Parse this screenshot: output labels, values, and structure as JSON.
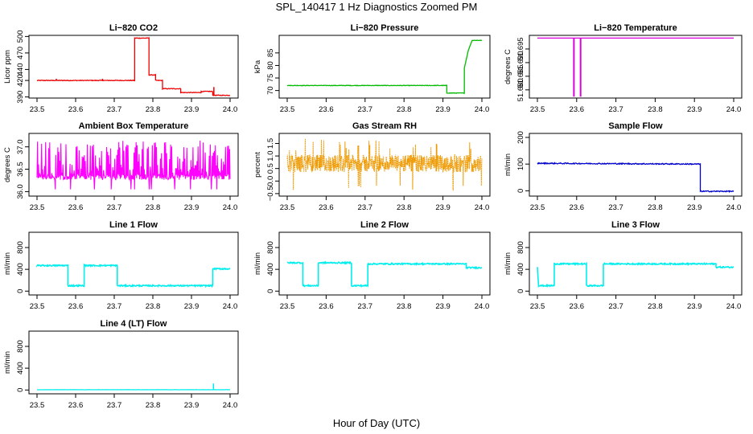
{
  "figure": {
    "title": "SPL_140417  1 Hz Diagnostics Zoomed PM",
    "xlabel": "Hour of Day (UTC)"
  },
  "chart_data": [
    {
      "type": "line",
      "title": "Li−820 CO2",
      "ylabel": "Licor ppm",
      "color": "#ee0000",
      "xlim": [
        23.5,
        24.0
      ],
      "ylim": [
        388,
        502
      ],
      "xticks": [
        "23.5",
        "23.6",
        "23.7",
        "23.8",
        "23.9",
        "24.0"
      ],
      "yticks": [
        {
          "v": 390,
          "label": "390"
        },
        {
          "v": 420,
          "label": "420"
        },
        {
          "v": 440,
          "label": "440"
        },
        {
          "v": 470,
          "label": "470"
        },
        {
          "v": 500,
          "label": "500"
        }
      ],
      "steps": [
        [
          23.5,
          420
        ],
        [
          23.753,
          420
        ],
        [
          23.753,
          497
        ],
        [
          23.79,
          497
        ],
        [
          23.79,
          430
        ],
        [
          23.807,
          430
        ],
        [
          23.807,
          420
        ],
        [
          23.825,
          420
        ],
        [
          23.825,
          405
        ],
        [
          23.872,
          405
        ],
        [
          23.872,
          398
        ],
        [
          23.925,
          398
        ],
        [
          23.925,
          400
        ],
        [
          23.955,
          400
        ],
        [
          23.955,
          393
        ],
        [
          24.0,
          393
        ]
      ],
      "noise": 0.6,
      "spikes": [
        [
          23.55,
          423
        ],
        [
          23.67,
          423
        ],
        [
          23.958,
          408
        ]
      ]
    },
    {
      "type": "line",
      "title": "Li−820 Pressure",
      "ylabel": "kPa",
      "color": "#00bb00",
      "xlim": [
        23.5,
        24.0
      ],
      "ylim": [
        67,
        92
      ],
      "xticks": [
        "23.5",
        "23.6",
        "23.7",
        "23.8",
        "23.9",
        "24.0"
      ],
      "yticks": [
        {
          "v": 70,
          "label": "70"
        },
        {
          "v": 75,
          "label": "75"
        },
        {
          "v": 80,
          "label": "80"
        },
        {
          "v": 85,
          "label": "85"
        }
      ],
      "steps": [
        [
          23.5,
          72
        ],
        [
          23.91,
          72
        ],
        [
          23.91,
          69
        ],
        [
          23.955,
          69
        ],
        [
          23.955,
          79
        ],
        [
          23.965,
          86
        ],
        [
          23.975,
          90
        ],
        [
          24.0,
          90
        ]
      ],
      "noise": 0.1,
      "spikes": []
    },
    {
      "type": "line",
      "title": "Li−820 Temperature",
      "ylabel": "degrees C",
      "color": "#dd00dd",
      "xlim": [
        23.5,
        24.0
      ],
      "ylim": [
        51.677,
        51.7
      ],
      "xticks": [
        "23.5",
        "23.6",
        "23.7",
        "23.8",
        "23.9",
        "24.0"
      ],
      "yticks": [
        {
          "v": 51.68,
          "label": "51.680"
        },
        {
          "v": 51.685,
          "label": "51.685"
        },
        {
          "v": 51.69,
          "label": "51.690"
        },
        {
          "v": 51.695,
          "label": "51.695"
        }
      ],
      "steps": [
        [
          23.5,
          51.699
        ],
        [
          24.0,
          51.699
        ]
      ],
      "noise": 0.0,
      "dips": [
        [
          23.593,
          51.6775
        ],
        [
          23.61,
          51.6775
        ]
      ]
    },
    {
      "type": "line",
      "title": "Ambient Box Temperature",
      "ylabel": "degrees C",
      "color": "#ff00ff",
      "xlim": [
        23.5,
        24.0
      ],
      "ylim": [
        35.9,
        37.3
      ],
      "xticks": [
        "23.5",
        "23.6",
        "23.7",
        "23.8",
        "23.9",
        "24.0"
      ],
      "yticks": [
        {
          "v": 36.0,
          "label": "36.0"
        },
        {
          "v": 36.5,
          "label": "36.5"
        },
        {
          "v": 37.0,
          "label": "37.0"
        }
      ],
      "band": [
        36.25,
        37.15
      ],
      "base": 36.3,
      "dense": true
    },
    {
      "type": "scatter",
      "title": "Gas Stream RH",
      "ylabel": "percent",
      "color": "#ee9900",
      "xlim": [
        23.5,
        24.0
      ],
      "ylim": [
        -0.6,
        1.9
      ],
      "xticks": [
        "23.5",
        "23.6",
        "23.7",
        "23.8",
        "23.9",
        "24.0"
      ],
      "yticks": [
        {
          "v": -0.5,
          "label": "−0.5"
        },
        {
          "v": 0.0,
          "label": "0.0"
        },
        {
          "v": 0.5,
          "label": "0.5"
        },
        {
          "v": 1.0,
          "label": "1.0"
        },
        {
          "v": 1.5,
          "label": "1.5"
        }
      ],
      "band": [
        0.35,
        1.05
      ],
      "spikeHigh": 1.8,
      "spikeLow": -0.45
    },
    {
      "type": "line",
      "title": "Sample Flow",
      "ylabel": "ml/min",
      "color": "#0000cc",
      "xlim": [
        23.5,
        24.0
      ],
      "ylim": [
        -20,
        215
      ],
      "xticks": [
        "23.5",
        "23.6",
        "23.7",
        "23.8",
        "23.9",
        "24.0"
      ],
      "yticks": [
        {
          "v": 0,
          "label": "0"
        },
        {
          "v": 100,
          "label": "100"
        },
        {
          "v": 200,
          "label": "200"
        }
      ],
      "steps": [
        [
          23.5,
          103
        ],
        [
          23.915,
          100
        ],
        [
          23.915,
          -2
        ],
        [
          24.0,
          -2
        ]
      ],
      "noise": 2.0,
      "spikes": []
    },
    {
      "type": "line",
      "title": "Line 1 Flow",
      "ylabel": "ml/min",
      "color": "#00eeee",
      "xlim": [
        23.5,
        24.0
      ],
      "ylim": [
        -70,
        1080
      ],
      "xticks": [
        "23.5",
        "23.6",
        "23.7",
        "23.8",
        "23.9",
        "24.0"
      ],
      "yticks": [
        {
          "v": 0,
          "label": "0"
        },
        {
          "v": 400,
          "label": "400"
        },
        {
          "v": 800,
          "label": "800"
        }
      ],
      "steps": [
        [
          23.5,
          100
        ],
        [
          23.5,
          470
        ],
        [
          23.58,
          470
        ],
        [
          23.58,
          100
        ],
        [
          23.622,
          100
        ],
        [
          23.622,
          470
        ],
        [
          23.708,
          470
        ],
        [
          23.708,
          100
        ],
        [
          23.955,
          100
        ],
        [
          23.955,
          410
        ],
        [
          24.0,
          410
        ]
      ],
      "noise": 12,
      "spikes": []
    },
    {
      "type": "line",
      "title": "Line 2 Flow",
      "ylabel": "ml/min",
      "color": "#00eeee",
      "xlim": [
        23.5,
        24.0
      ],
      "ylim": [
        -70,
        1080
      ],
      "xticks": [
        "23.5",
        "23.6",
        "23.7",
        "23.8",
        "23.9",
        "24.0"
      ],
      "yticks": [
        {
          "v": 0,
          "label": "0"
        },
        {
          "v": 400,
          "label": "400"
        },
        {
          "v": 800,
          "label": "800"
        }
      ],
      "steps": [
        [
          23.5,
          520
        ],
        [
          23.54,
          520
        ],
        [
          23.54,
          100
        ],
        [
          23.58,
          100
        ],
        [
          23.58,
          520
        ],
        [
          23.665,
          520
        ],
        [
          23.665,
          100
        ],
        [
          23.707,
          100
        ],
        [
          23.707,
          500
        ],
        [
          23.96,
          500
        ],
        [
          23.96,
          430
        ],
        [
          24.0,
          430
        ]
      ],
      "noise": 12,
      "spikes": []
    },
    {
      "type": "line",
      "title": "Line 3 Flow",
      "ylabel": "ml/min",
      "color": "#00eeee",
      "xlim": [
        23.5,
        24.0
      ],
      "ylim": [
        -70,
        1080
      ],
      "xticks": [
        "23.5",
        "23.6",
        "23.7",
        "23.8",
        "23.9",
        "24.0"
      ],
      "yticks": [
        {
          "v": 0,
          "label": "0"
        },
        {
          "v": 400,
          "label": "400"
        },
        {
          "v": 800,
          "label": "800"
        }
      ],
      "steps": [
        [
          23.5,
          450
        ],
        [
          23.503,
          100
        ],
        [
          23.543,
          100
        ],
        [
          23.543,
          500
        ],
        [
          23.625,
          500
        ],
        [
          23.625,
          100
        ],
        [
          23.668,
          100
        ],
        [
          23.668,
          500
        ],
        [
          23.955,
          500
        ],
        [
          23.955,
          440
        ],
        [
          24.0,
          440
        ]
      ],
      "noise": 12,
      "spikes": []
    },
    {
      "type": "line",
      "title": "Line 4 (LT) Flow",
      "ylabel": "ml/min",
      "color": "#00eeee",
      "xlim": [
        23.5,
        24.0
      ],
      "ylim": [
        -70,
        1080
      ],
      "xticks": [
        "23.5",
        "23.6",
        "23.7",
        "23.8",
        "23.9",
        "24.0"
      ],
      "yticks": [
        {
          "v": 0,
          "label": "0"
        },
        {
          "v": 400,
          "label": "400"
        },
        {
          "v": 800,
          "label": "800"
        }
      ],
      "steps": [
        [
          23.5,
          5
        ],
        [
          24.0,
          5
        ]
      ],
      "noise": 2,
      "spikes": [
        [
          23.957,
          120
        ]
      ]
    }
  ]
}
